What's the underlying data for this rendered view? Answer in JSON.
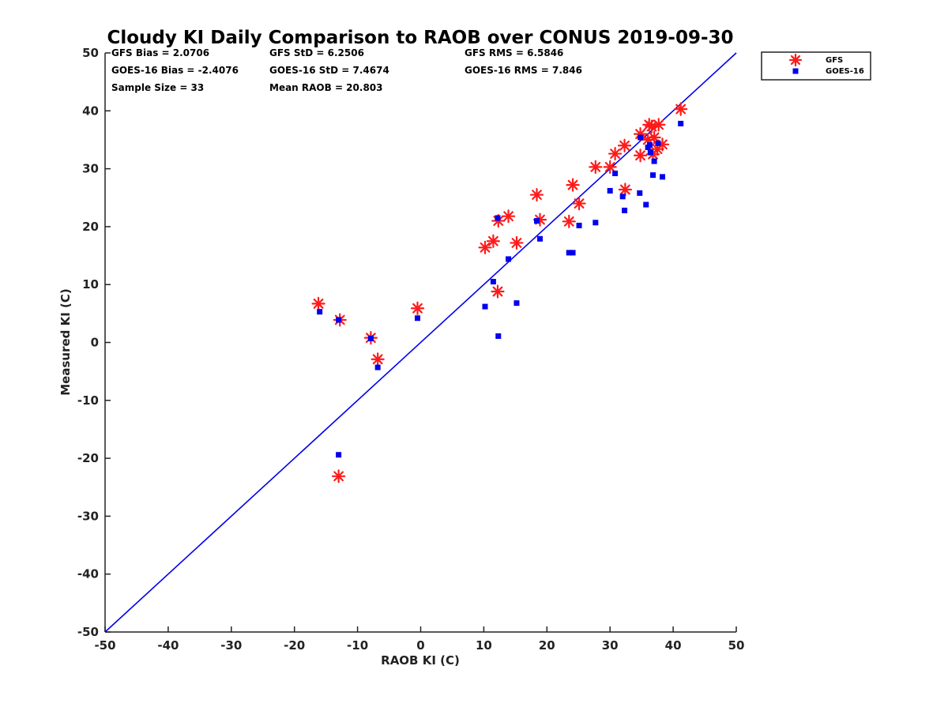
{
  "chart_data": {
    "type": "scatter",
    "title": "Cloudy KI Daily Comparison to RAOB over CONUS 2019-09-30",
    "xlabel": "RAOB KI (C)",
    "ylabel": "Measured KI (C)",
    "xlim": [
      -50,
      50
    ],
    "ylim": [
      -50,
      50
    ],
    "xticks": [
      -50,
      -40,
      -30,
      -20,
      -10,
      0,
      10,
      20,
      30,
      40,
      50
    ],
    "yticks": [
      -50,
      -40,
      -30,
      -20,
      -10,
      0,
      10,
      20,
      30,
      40,
      50
    ],
    "grid": false,
    "legend_position": "outside-top-right",
    "stats": [
      [
        "GFS Bias = 2.0706",
        "GFS StD = 6.2506",
        "GFS RMS = 6.5846"
      ],
      [
        "GOES-16 Bias = -2.4076",
        "GOES-16 StD = 7.4674",
        "GOES-16 RMS = 7.846"
      ],
      [
        "Sample Size = 33",
        "Mean RAOB = 20.803",
        ""
      ]
    ],
    "reference_line": {
      "from": [
        -50,
        -50
      ],
      "to": [
        50,
        50
      ],
      "color": "#0000ee"
    },
    "series": [
      {
        "name": "GFS",
        "marker": "asterisk",
        "color": "#ff1a1a",
        "points": [
          [
            -16.2,
            6.7
          ],
          [
            -12.8,
            3.9
          ],
          [
            -7.9,
            0.8
          ],
          [
            -6.8,
            -2.9
          ],
          [
            -0.5,
            5.9
          ],
          [
            -13.0,
            -23.1
          ],
          [
            10.2,
            16.4
          ],
          [
            11.5,
            17.5
          ],
          [
            12.3,
            21.0
          ],
          [
            13.9,
            21.8
          ],
          [
            15.2,
            17.2
          ],
          [
            18.4,
            25.5
          ],
          [
            18.9,
            21.2
          ],
          [
            12.2,
            8.8
          ],
          [
            23.5,
            20.9
          ],
          [
            24.1,
            27.2
          ],
          [
            25.1,
            24.0
          ],
          [
            27.7,
            30.3
          ],
          [
            30.0,
            30.3
          ],
          [
            30.8,
            32.6
          ],
          [
            32.3,
            34.0
          ],
          [
            32.4,
            26.4
          ],
          [
            34.8,
            36.0
          ],
          [
            34.8,
            32.3
          ],
          [
            36.0,
            35.0
          ],
          [
            36.2,
            37.6
          ],
          [
            36.6,
            37.3
          ],
          [
            36.8,
            32.5
          ],
          [
            37.0,
            35.4
          ],
          [
            37.5,
            33.4
          ],
          [
            37.7,
            37.6
          ],
          [
            38.3,
            34.2
          ],
          [
            41.2,
            40.3
          ]
        ]
      },
      {
        "name": "GOES-16",
        "marker": "square",
        "color": "#0000ee",
        "points": [
          [
            -16.0,
            5.3
          ],
          [
            -13.0,
            3.9
          ],
          [
            -13.0,
            -19.4
          ],
          [
            -7.9,
            0.7
          ],
          [
            -6.8,
            -4.3
          ],
          [
            -0.5,
            4.2
          ],
          [
            10.2,
            6.2
          ],
          [
            11.5,
            10.5
          ],
          [
            12.2,
            21.5
          ],
          [
            12.3,
            1.1
          ],
          [
            13.9,
            14.4
          ],
          [
            15.2,
            6.8
          ],
          [
            18.4,
            21.0
          ],
          [
            18.9,
            17.9
          ],
          [
            23.5,
            15.5
          ],
          [
            24.1,
            15.5
          ],
          [
            25.1,
            20.2
          ],
          [
            27.7,
            20.7
          ],
          [
            30.0,
            26.2
          ],
          [
            30.8,
            29.2
          ],
          [
            32.0,
            25.2
          ],
          [
            32.3,
            22.8
          ],
          [
            34.7,
            25.8
          ],
          [
            34.8,
            35.4
          ],
          [
            35.7,
            23.8
          ],
          [
            36.0,
            33.7
          ],
          [
            36.4,
            32.8
          ],
          [
            36.8,
            28.9
          ],
          [
            37.0,
            31.3
          ],
          [
            37.6,
            34.4
          ],
          [
            38.3,
            28.6
          ],
          [
            41.2,
            37.8
          ],
          [
            36.3,
            34.1
          ]
        ]
      }
    ]
  }
}
